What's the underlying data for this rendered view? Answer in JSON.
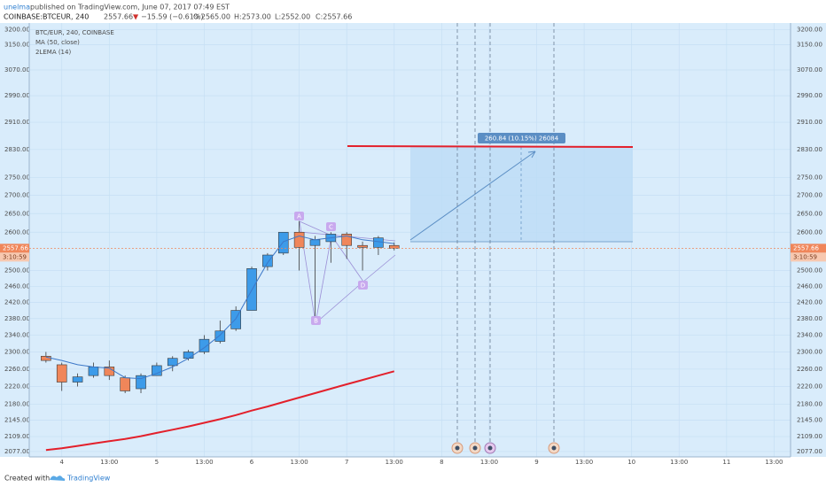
{
  "header": {
    "author": "unelma",
    "published": "published on TradingView.com, June 07, 2017 07:49 EST"
  },
  "quote": {
    "symbol": "COINBASE:BTCEUR, 240",
    "last": "2557.66",
    "arrow": "▼",
    "change": "−15.59 (−0.61%)",
    "open": "O:2565.00",
    "high": "H:2573.00",
    "low": "L:2552.00",
    "close": "C:2557.66"
  },
  "chart_data": {
    "type": "candlestick",
    "legend_title": "BTC/EUR, 240, COINBASE",
    "log_scale": true,
    "grid": true,
    "up_color": "#3d9be9",
    "down_color": "#f0865a",
    "categories": [
      null,
      "4",
      null,
      null,
      "13:00",
      null,
      null,
      "5",
      null,
      null,
      "13:00",
      null,
      null,
      "6",
      null,
      null,
      "13:00",
      null,
      null,
      "7",
      null,
      null,
      "13:00",
      null,
      null,
      "8",
      null,
      null,
      "13:00",
      null,
      null,
      "9",
      null,
      null,
      "13:00",
      null,
      null,
      "10",
      null,
      null,
      "13:00",
      null,
      null,
      "11",
      null,
      null,
      "13:00"
    ],
    "open": [
      2290,
      2270,
      2230,
      2245,
      2265,
      2240,
      2215,
      2245,
      2268,
      2285,
      2300,
      2325,
      2355,
      2400,
      2510,
      2545,
      2600,
      2565,
      2575,
      2595,
      2565,
      2560,
      2565,
      null,
      null,
      null,
      null,
      null,
      null,
      null,
      null,
      null,
      null,
      null,
      null,
      null,
      null,
      null,
      null,
      null,
      null,
      null,
      null,
      null,
      null,
      null,
      null
    ],
    "high": [
      2300,
      2275,
      2250,
      2275,
      2280,
      2245,
      2250,
      2275,
      2290,
      2305,
      2340,
      2375,
      2410,
      2510,
      2545,
      2600,
      2630,
      2590,
      2600,
      2600,
      2575,
      2590,
      2573,
      null,
      null,
      null,
      null,
      null,
      null,
      null,
      null,
      null,
      null,
      null,
      null,
      null,
      null,
      null,
      null,
      null,
      null,
      null,
      null,
      null,
      null,
      null,
      null
    ],
    "low": [
      2275,
      2210,
      2220,
      2240,
      2235,
      2205,
      2205,
      2245,
      2255,
      2280,
      2295,
      2320,
      2350,
      2400,
      2500,
      2540,
      2500,
      2370,
      2520,
      2530,
      2500,
      2540,
      2552,
      null,
      null,
      null,
      null,
      null,
      null,
      null,
      null,
      null,
      null,
      null,
      null,
      null,
      null,
      null,
      null,
      null,
      null,
      null,
      null,
      null,
      null,
      null,
      null
    ],
    "close": [
      2280,
      2230,
      2242,
      2265,
      2245,
      2210,
      2245,
      2268,
      2285,
      2300,
      2330,
      2350,
      2400,
      2505,
      2540,
      2600,
      2560,
      2580,
      2595,
      2565,
      2560,
      2585,
      2557.66,
      null,
      null,
      null,
      null,
      null,
      null,
      null,
      null,
      null,
      null,
      null,
      null,
      null,
      null,
      null,
      null,
      null,
      null,
      null,
      null,
      null,
      null,
      null,
      null
    ],
    "series": [
      {
        "name": "MA (50, close)",
        "color": "#e3202b",
        "values": [
          2080,
          2084,
          2089,
          2094,
          2099,
          2104,
          2110,
          2117,
          2124,
          2131,
          2139,
          2147,
          2156,
          2166,
          2175,
          2185,
          2195,
          2205,
          2215,
          2225,
          2235,
          2245,
          2255,
          null,
          null,
          null,
          null,
          null,
          null,
          null,
          null,
          null,
          null,
          null,
          null,
          null,
          null,
          null,
          null,
          null,
          null,
          null,
          null,
          null,
          null,
          null,
          null
        ]
      },
      {
        "name": "2LEMA (14)",
        "color": "#3c78c8",
        "values": [
          2288,
          2280,
          2270,
          2265,
          2262,
          2240,
          2238,
          2250,
          2265,
          2285,
          2310,
          2340,
          2380,
          2450,
          2520,
          2575,
          2590,
          2580,
          2585,
          2590,
          2580,
          2575,
          2570,
          null,
          null,
          null,
          null,
          null,
          null,
          null,
          null,
          null,
          null,
          null,
          null,
          null,
          null,
          null,
          null,
          null,
          null,
          null,
          null,
          null,
          null,
          null,
          null
        ]
      }
    ],
    "ylim": [
      2060,
      3230
    ],
    "yticks": [
      {
        "value": 3200,
        "label": "3200.00"
      },
      {
        "value": 3150,
        "label": "3150.00"
      },
      {
        "value": 3070,
        "label": "3070.00"
      },
      {
        "value": 2990,
        "label": "2990.00"
      },
      {
        "value": 2910,
        "label": "2910.00"
      },
      {
        "value": 2830,
        "label": "2830.00"
      },
      {
        "value": 2750,
        "label": "2750.00"
      },
      {
        "value": 2700,
        "label": "2700.00"
      },
      {
        "value": 2650,
        "label": "2650.00"
      },
      {
        "value": 2600,
        "label": "2600.00"
      },
      {
        "value": 2500,
        "label": "2500.00"
      },
      {
        "value": 2460,
        "label": "2460.00"
      },
      {
        "value": 2420,
        "label": "2420.00"
      },
      {
        "value": 2380,
        "label": "2380.00"
      },
      {
        "value": 2340,
        "label": "2340.00"
      },
      {
        "value": 2300,
        "label": "2300.00"
      },
      {
        "value": 2260,
        "label": "2260.00"
      },
      {
        "value": 2220,
        "label": "2220.00"
      },
      {
        "value": 2180,
        "label": "2180.00"
      },
      {
        "value": 2145,
        "label": "2145.00"
      },
      {
        "value": 2109,
        "label": "2109.00"
      },
      {
        "value": 2077,
        "label": "2077.00"
      }
    ],
    "last_price": 2557.66,
    "countdown": "3:10:59",
    "pattern_labels": [
      "A",
      "B",
      "C",
      "D"
    ],
    "projection_label": "260.84 (10.15%) 26084"
  },
  "footer": {
    "created": "Created with",
    "brand": "TradingView"
  }
}
